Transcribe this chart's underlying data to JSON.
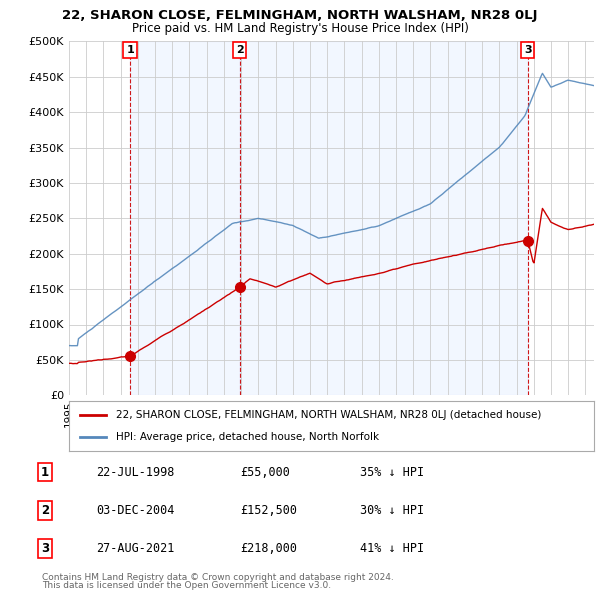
{
  "title1": "22, SHARON CLOSE, FELMINGHAM, NORTH WALSHAM, NR28 0LJ",
  "title2": "Price paid vs. HM Land Registry's House Price Index (HPI)",
  "ylim": [
    0,
    500000
  ],
  "yticks": [
    0,
    50000,
    100000,
    150000,
    200000,
    250000,
    300000,
    350000,
    400000,
    450000,
    500000
  ],
  "ytick_labels": [
    "£0",
    "£50K",
    "£100K",
    "£150K",
    "£200K",
    "£250K",
    "£300K",
    "£350K",
    "£400K",
    "£450K",
    "£500K"
  ],
  "red_line_color": "#cc0000",
  "blue_line_color": "#5588bb",
  "sale_marker_color": "#cc0000",
  "vline_color": "#cc0000",
  "background_color": "#ffffff",
  "grid_color": "#cccccc",
  "shade_color": "#ddeeff",
  "sales": [
    {
      "date_num": 1998.55,
      "price": 55000,
      "label": "1"
    },
    {
      "date_num": 2004.92,
      "price": 152500,
      "label": "2"
    },
    {
      "date_num": 2021.65,
      "price": 218000,
      "label": "3"
    }
  ],
  "legend_red": "22, SHARON CLOSE, FELMINGHAM, NORTH WALSHAM, NR28 0LJ (detached house)",
  "legend_blue": "HPI: Average price, detached house, North Norfolk",
  "table_rows": [
    [
      "1",
      "22-JUL-1998",
      "£55,000",
      "35% ↓ HPI"
    ],
    [
      "2",
      "03-DEC-2004",
      "£152,500",
      "30% ↓ HPI"
    ],
    [
      "3",
      "27-AUG-2021",
      "£218,000",
      "41% ↓ HPI"
    ]
  ],
  "footnote1": "Contains HM Land Registry data © Crown copyright and database right 2024.",
  "footnote2": "This data is licensed under the Open Government Licence v3.0."
}
